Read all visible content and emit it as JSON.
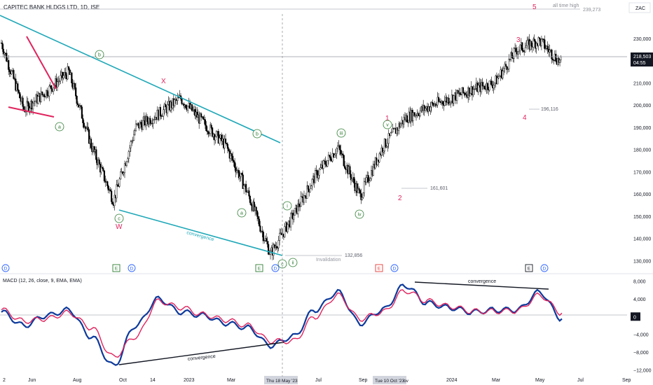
{
  "header": {
    "title": "CAPITEC BANK HLDGS LTD, 1D, ISE",
    "currency": "ZAC"
  },
  "price_axis": {
    "ticks": [
      "230,000",
      "220,000",
      "210,000",
      "200,000",
      "190,000",
      "180,000",
      "170,000",
      "160,000",
      "150,000",
      "140,000",
      "130,000"
    ],
    "last_price": "218,503",
    "countdown": "04:55",
    "all_time_high_label": "all time high",
    "all_time_high_value": "239,273"
  },
  "time_axis": {
    "ticks": [
      "2",
      "Jun",
      "Aug",
      "Oct",
      "14",
      "2023",
      "Mar",
      "Jul",
      "Sep",
      "2024",
      "Mar",
      "May",
      "Jul",
      "Sep"
    ],
    "crosshair_dates": [
      "Thu 18 May '23",
      "Tue 10 Oct '23"
    ],
    "partial_label": "ov"
  },
  "macd": {
    "label": "MACD (12, 26, close, 9, EMA, EMA)",
    "ticks": [
      "8,000",
      "4,000",
      "0",
      "−4,000",
      "−8,000",
      "−12,000"
    ],
    "current_value": "0"
  },
  "annotations": {
    "wave_labels_red": [
      "X",
      "W",
      "1",
      "2",
      "3",
      "4",
      "5"
    ],
    "wave_labels_circled": [
      "a",
      "b",
      "c",
      "a",
      "b",
      "c",
      "i",
      "ii",
      "iii",
      "iv",
      "v"
    ],
    "levels": [
      "196,116",
      "161,601",
      "132,856"
    ],
    "invalidation": "Invalidation",
    "convergence_price": "convergence",
    "convergence_macd_low": "convergence",
    "convergence_macd_high": "convergence",
    "event_markers": [
      "D",
      "E",
      "D",
      "E",
      "D",
      "E",
      "D",
      "E",
      "D"
    ]
  },
  "colors": {
    "trendline": "#1fa8b8",
    "wedge": "#e0245e",
    "macd_line": "#0d3a9c",
    "signal_line": "#e0245e",
    "candles": "#000000",
    "circled": "#2e7d32",
    "dividend_marker": "#2962ff",
    "earnings_marker": "#e53935"
  },
  "chart_data": [
    {
      "type": "candlestick",
      "title": "CAPITEC BANK HLDGS LTD, 1D, ISE",
      "ylim": [
        126000,
        241000
      ],
      "x": [
        "2022-05",
        "2022-06",
        "2022-07",
        "2022-08",
        "2022-09",
        "2022-10",
        "2022-11",
        "2022-12",
        "2023-01",
        "2023-02",
        "2023-03",
        "2023-04",
        "2023-05",
        "2023-06",
        "2023-07",
        "2023-08",
        "2023-09",
        "2023-10",
        "2023-11",
        "2023-12",
        "2024-01",
        "2024-02",
        "2024-03",
        "2024-04",
        "2024-05",
        "2024-06"
      ],
      "close": [
        228000,
        198000,
        206000,
        215000,
        182000,
        157000,
        190000,
        196000,
        203000,
        192000,
        182000,
        160000,
        133000,
        150000,
        168000,
        181000,
        159000,
        181000,
        194000,
        199000,
        203000,
        207000,
        210000,
        225000,
        229000,
        218503
      ]
    },
    {
      "type": "line",
      "title": "MACD (12, 26, close, 9, EMA, EMA)",
      "ylim": [
        -13000,
        9000
      ],
      "x": [
        "2022-05",
        "2022-06",
        "2022-07",
        "2022-08",
        "2022-09",
        "2022-10",
        "2022-11",
        "2022-12",
        "2023-01",
        "2023-02",
        "2023-03",
        "2023-04",
        "2023-05",
        "2023-06",
        "2023-07",
        "2023-08",
        "2023-09",
        "2023-10",
        "2023-11",
        "2023-12",
        "2024-01",
        "2024-02",
        "2024-03",
        "2024-04",
        "2024-05",
        "2024-06"
      ],
      "series": [
        {
          "values": [
            1000,
            -2000,
            200,
            1500,
            -4500,
            -11000,
            -2000,
            4000,
            1000,
            300,
            -1500,
            -2500,
            -6500,
            -4500,
            1500,
            5500,
            -1500,
            1500,
            7000,
            3000,
            2000,
            1000,
            1500,
            1500,
            5500,
            -500
          ]
        },
        {
          "values": [
            1500,
            -1000,
            -500,
            900,
            -2500,
            -9000,
            -4500,
            3500,
            2000,
            500,
            -800,
            -2000,
            -5500,
            -5500,
            0,
            4800,
            -500,
            1000,
            5800,
            3500,
            2300,
            1200,
            1200,
            1300,
            4800,
            800
          ]
        }
      ]
    }
  ]
}
